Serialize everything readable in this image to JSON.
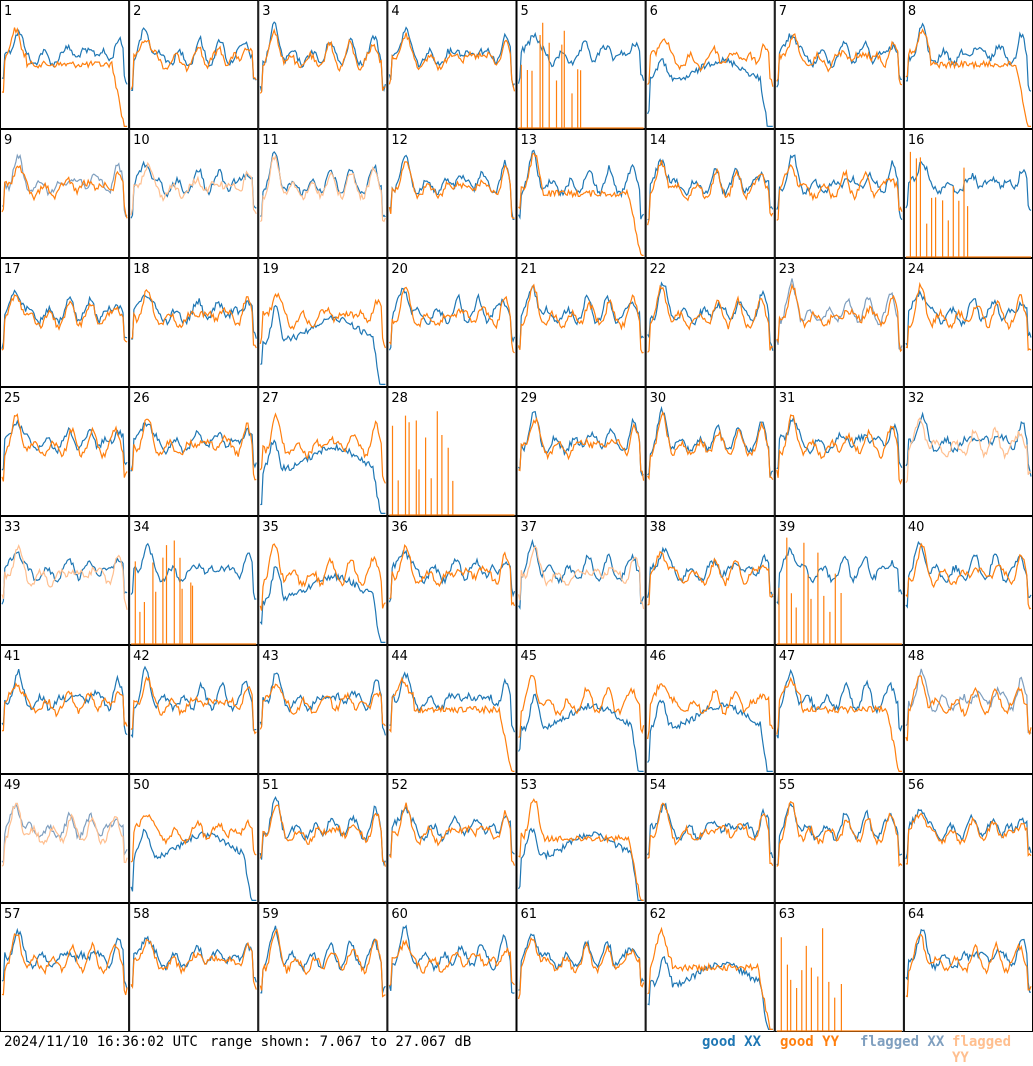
{
  "chart_data": {
    "type": "line",
    "panels": [
      "1",
      "2",
      "3",
      "4",
      "5",
      "6",
      "7",
      "8",
      "9",
      "10",
      "11",
      "12",
      "13",
      "14",
      "15",
      "16",
      "17",
      "18",
      "19",
      "20",
      "21",
      "22",
      "23",
      "24",
      "25",
      "26",
      "27",
      "28",
      "29",
      "30",
      "31",
      "32",
      "33",
      "34",
      "35",
      "36",
      "37",
      "38",
      "39",
      "40",
      "41",
      "42",
      "43",
      "44",
      "45",
      "46",
      "47",
      "48",
      "49",
      "50",
      "51",
      "52",
      "53",
      "54",
      "55",
      "56",
      "57",
      "58",
      "59",
      "60",
      "61",
      "62",
      "63",
      "64"
    ],
    "series": [
      {
        "name": "good XX",
        "color": "#1f77b4"
      },
      {
        "name": "good YY",
        "color": "#ff7f0e"
      },
      {
        "name": "flagged XX",
        "color": "#7f9fbf"
      },
      {
        "name": "flagged YY",
        "color": "#ffbf8f"
      }
    ],
    "ylim": [
      7.067,
      27.067
    ],
    "grid": false
  },
  "footer": {
    "timestamp": "2024/11/10 16:36:02 UTC",
    "range_text": "range shown: 7.067 to 27.067 dB"
  },
  "legend": {
    "good_xx": "good XX",
    "good_yy": "good YY",
    "flagged_xx": "flagged XX",
    "flagged_yy": "flagged YY"
  }
}
